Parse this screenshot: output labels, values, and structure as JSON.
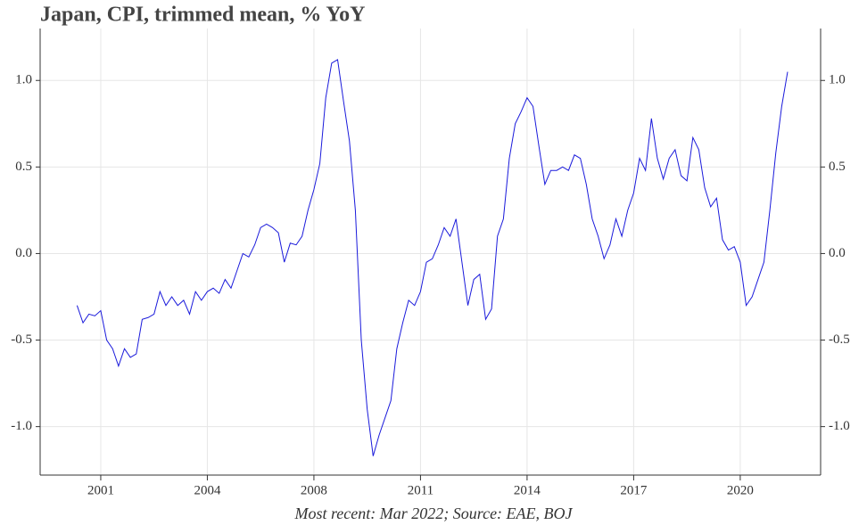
{
  "chart_data": {
    "type": "line",
    "title": "Japan, CPI, trimmed mean, % YoY",
    "footnote": "Most recent: Mar 2022; Source: EAE, BOJ",
    "color": "#1a1adb",
    "categories": [
      null,
      null,
      null,
      null,
      "2001",
      null,
      null,
      null,
      null,
      null,
      null,
      null,
      null,
      null,
      null,
      null,
      null,
      null,
      null,
      null,
      null,
      null,
      "2004",
      null,
      null,
      null,
      null,
      null,
      null,
      null,
      null,
      null,
      null,
      null,
      null,
      null,
      null,
      null,
      null,
      null,
      "2008",
      null,
      null,
      null,
      null,
      null,
      null,
      null,
      null,
      null,
      null,
      null,
      null,
      null,
      null,
      null,
      null,
      null,
      "2011",
      null,
      null,
      null,
      null,
      null,
      null,
      null,
      null,
      null,
      null,
      null,
      null,
      null,
      null,
      null,
      null,
      null,
      "2014",
      null,
      null,
      null,
      null,
      null,
      null,
      null,
      null,
      null,
      null,
      null,
      null,
      null,
      null,
      null,
      null,
      null,
      "2017",
      null,
      null,
      null,
      null,
      null,
      null,
      null,
      null,
      null,
      null,
      null,
      null,
      null,
      null,
      null,
      null,
      null,
      "2020",
      null,
      null,
      null,
      null,
      null,
      null,
      null,
      null
    ],
    "values": [
      -0.3,
      -0.4,
      -0.35,
      -0.36,
      -0.33,
      -0.5,
      -0.55,
      -0.65,
      -0.55,
      -0.6,
      -0.58,
      -0.38,
      -0.37,
      -0.35,
      -0.22,
      -0.3,
      -0.25,
      -0.3,
      -0.27,
      -0.35,
      -0.22,
      -0.27,
      -0.22,
      -0.2,
      -0.23,
      -0.15,
      -0.2,
      -0.1,
      0.0,
      -0.02,
      0.05,
      0.15,
      0.17,
      0.15,
      0.12,
      -0.05,
      0.06,
      0.05,
      0.1,
      0.25,
      0.37,
      0.52,
      0.9,
      1.1,
      1.12,
      0.88,
      0.65,
      0.25,
      -0.5,
      -0.9,
      -1.17,
      -1.05,
      -0.95,
      -0.85,
      -0.55,
      -0.4,
      -0.27,
      -0.3,
      -0.22,
      -0.05,
      -0.03,
      0.05,
      0.15,
      0.1,
      0.2,
      -0.05,
      -0.3,
      -0.15,
      -0.12,
      -0.38,
      -0.32,
      0.1,
      0.2,
      0.55,
      0.75,
      0.82,
      0.9,
      0.85,
      0.62,
      0.4,
      0.48,
      0.48,
      0.5,
      0.48,
      0.57,
      0.55,
      0.4,
      0.2,
      0.1,
      -0.03,
      0.05,
      0.2,
      0.1,
      0.25,
      0.35,
      0.55,
      0.48,
      0.78,
      0.55,
      0.43,
      0.55,
      0.6,
      0.45,
      0.42,
      0.67,
      0.6,
      0.38,
      0.27,
      0.32,
      0.08,
      0.02,
      0.04,
      -0.05,
      -0.3,
      -0.25,
      -0.15,
      -0.05,
      0.25,
      0.58,
      0.85,
      1.05
    ],
    "ylim": [
      -1.28,
      1.3
    ],
    "yticks": [
      {
        "value": -1.0,
        "label": "-1.0"
      },
      {
        "value": -0.5,
        "label": "-0.5"
      },
      {
        "value": 0.0,
        "label": "0.0"
      },
      {
        "value": 0.5,
        "label": "0.5"
      },
      {
        "value": 1.0,
        "label": "1.0"
      }
    ],
    "grid": true
  }
}
